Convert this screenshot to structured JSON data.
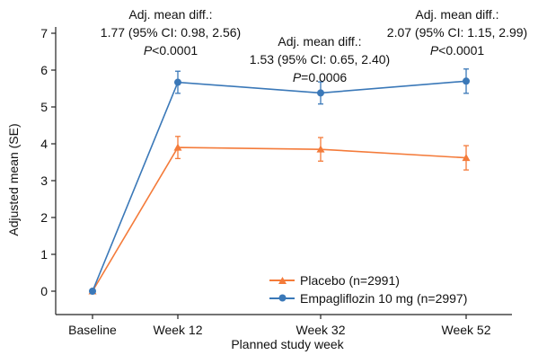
{
  "chart_data": {
    "type": "line",
    "xlabel": "Planned study week",
    "ylabel": "Adjusted mean (SE)",
    "categories": [
      "Baseline",
      "Week 12",
      "Week 32",
      "Week 52"
    ],
    "ylim": [
      0,
      7
    ],
    "yticks": [
      "0",
      "1",
      "2",
      "3",
      "4",
      "5",
      "6",
      "7"
    ],
    "series": [
      {
        "name": "Placebo (n=2991)",
        "color": "#f47b3a",
        "marker": "triangle",
        "values": [
          0.0,
          3.9,
          3.85,
          3.62
        ],
        "errors": [
          0.0,
          0.3,
          0.32,
          0.33
        ]
      },
      {
        "name": "Empagliflozin 10 mg (n=2997)",
        "color": "#3a78b8",
        "marker": "circle",
        "values": [
          0.0,
          5.67,
          5.38,
          5.7
        ],
        "errors": [
          0.0,
          0.3,
          0.3,
          0.33
        ]
      }
    ],
    "annotations": [
      {
        "line1": "Adj. mean diff.:",
        "line2": "1.77 (95% CI: 0.98, 2.56)",
        "p_label": "P",
        "p_value": "<0.0001"
      },
      {
        "line1": "Adj. mean diff.:",
        "line2": "1.53 (95% CI: 0.65, 2.40)",
        "p_label": "P",
        "p_value": "=0.0006"
      },
      {
        "line1": "Adj. mean diff.:",
        "line2": "2.07 (95% CI: 1.15, 2.99)",
        "p_label": "P",
        "p_value": "<0.0001"
      }
    ],
    "legend_position": "bottom-right",
    "grid": false
  }
}
